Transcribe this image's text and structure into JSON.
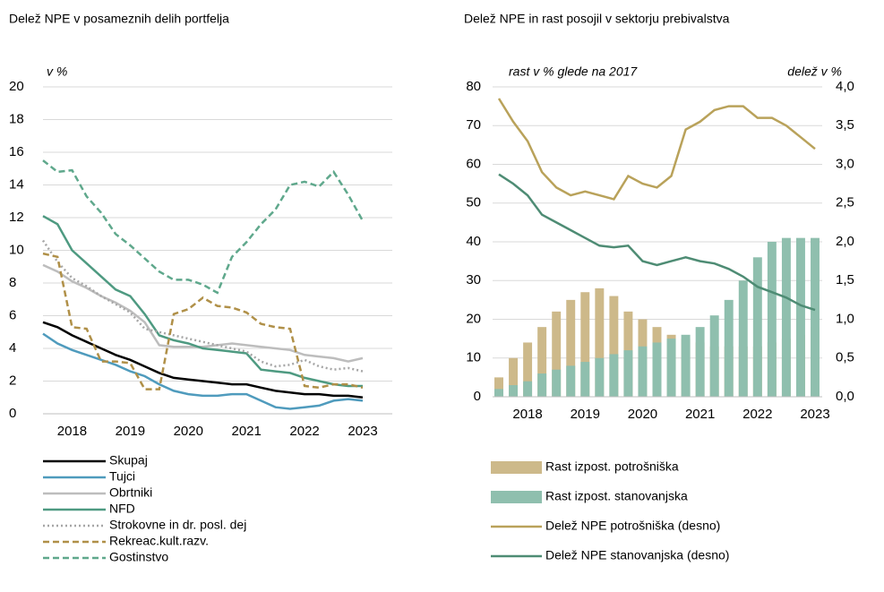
{
  "chart_data": [
    {
      "type": "line",
      "title": "Delež NPE v posameznih delih portfelja",
      "y_label": "v %",
      "categories": [
        null,
        null,
        "2018",
        null,
        null,
        null,
        "2019",
        null,
        null,
        null,
        "2020",
        null,
        null,
        null,
        "2021",
        null,
        null,
        null,
        "2022",
        null,
        null,
        null,
        "2023"
      ],
      "ylim": [
        0,
        20
      ],
      "yticks": [
        0,
        2,
        4,
        6,
        8,
        10,
        12,
        14,
        16,
        18,
        20
      ],
      "grid": true,
      "series": [
        {
          "name": "Skupaj",
          "color": "#000000",
          "dash": "solid",
          "values": [
            5.6,
            5.3,
            4.8,
            4.4,
            4.0,
            3.6,
            3.3,
            2.9,
            2.5,
            2.2,
            2.1,
            2.0,
            1.9,
            1.8,
            1.8,
            1.6,
            1.4,
            1.3,
            1.2,
            1.2,
            1.1,
            1.1,
            1.0
          ]
        },
        {
          "name": "Tujci",
          "color": "#4f9bbd",
          "dash": "solid",
          "values": [
            4.9,
            4.3,
            3.9,
            3.6,
            3.3,
            3.0,
            2.6,
            2.3,
            1.8,
            1.4,
            1.2,
            1.1,
            1.1,
            1.2,
            1.2,
            0.8,
            0.4,
            0.3,
            0.4,
            0.5,
            0.8,
            0.9,
            0.8
          ]
        },
        {
          "name": "Obrtniki",
          "color": "#bdbdbd",
          "dash": "solid",
          "values": [
            9.1,
            8.7,
            8.1,
            7.7,
            7.2,
            6.8,
            6.3,
            5.6,
            4.2,
            4.1,
            4.1,
            4.1,
            4.2,
            4.3,
            4.2,
            4.1,
            4.0,
            3.9,
            3.6,
            3.5,
            3.4,
            3.2,
            3.4
          ]
        },
        {
          "name": "NFD",
          "color": "#4e9a81",
          "dash": "solid",
          "values": [
            12.1,
            11.6,
            10.0,
            9.2,
            8.4,
            7.6,
            7.2,
            6.1,
            4.8,
            4.5,
            4.3,
            4.0,
            3.9,
            3.8,
            3.7,
            2.7,
            2.6,
            2.5,
            2.2,
            2.0,
            1.8,
            1.7,
            1.7
          ]
        },
        {
          "name": "Strokovne in dr. posl. dej",
          "color": "#a6a6a6",
          "dash": "dotted",
          "values": [
            10.6,
            9.3,
            8.3,
            7.8,
            7.2,
            6.7,
            6.2,
            5.2,
            5.0,
            4.8,
            4.6,
            4.4,
            4.2,
            4.0,
            3.8,
            3.2,
            2.9,
            3.0,
            3.3,
            2.9,
            2.7,
            2.8,
            2.6
          ]
        },
        {
          "name": "Rekreac.kult.razv.",
          "color": "#b09048",
          "dash": "dashed",
          "values": [
            9.8,
            9.6,
            5.3,
            5.2,
            3.2,
            3.2,
            3.1,
            1.5,
            1.5,
            6.1,
            6.4,
            7.1,
            6.6,
            6.5,
            6.2,
            5.5,
            5.3,
            5.2,
            1.7,
            1.6,
            1.8,
            1.8,
            1.6
          ]
        },
        {
          "name": "Gostinstvo",
          "color": "#5fa88c",
          "dash": "dashed",
          "values": [
            15.5,
            14.8,
            14.9,
            13.3,
            12.3,
            11.0,
            10.3,
            9.5,
            8.7,
            8.2,
            8.2,
            7.9,
            7.4,
            9.6,
            10.5,
            11.6,
            12.5,
            14.0,
            14.2,
            13.9,
            14.8,
            13.4,
            11.8
          ]
        }
      ]
    },
    {
      "type": "bar",
      "title": "Delež NPE in rast posojil v sektorju prebivalstva",
      "y_label": "rast v % glede na 2017",
      "y2_label": "delež v %",
      "categories": [
        null,
        null,
        "2018",
        null,
        null,
        null,
        "2019",
        null,
        null,
        null,
        "2020",
        null,
        null,
        null,
        "2021",
        null,
        null,
        null,
        "2022",
        null,
        null,
        null,
        "2023"
      ],
      "ylim": [
        0,
        80
      ],
      "yticks": [
        0,
        10,
        20,
        30,
        40,
        50,
        60,
        70,
        80
      ],
      "grid": true,
      "y2lim": [
        0,
        4
      ],
      "y2ticks": [
        {
          "value": 0,
          "label": "0,0"
        },
        {
          "value": 0.5,
          "label": "0,5"
        },
        {
          "value": 1,
          "label": "1,0"
        },
        {
          "value": 1.5,
          "label": "1,5"
        },
        {
          "value": 2,
          "label": "2,0"
        },
        {
          "value": 2.5,
          "label": "2,5"
        },
        {
          "value": 3,
          "label": "3,0"
        },
        {
          "value": 3.5,
          "label": "3,5"
        },
        {
          "value": 4,
          "label": "4,0"
        }
      ],
      "series": [
        {
          "name": "Rast izpost. potrošniška",
          "type": "bar",
          "color": "#cdb98a",
          "values": [
            5,
            10,
            14,
            18,
            22,
            25,
            27,
            28,
            26,
            22,
            20,
            18,
            16,
            15,
            14,
            13,
            13,
            13,
            13,
            14,
            15,
            16,
            18
          ]
        },
        {
          "name": "Rast izpost. stanovanjska",
          "type": "bar",
          "color": "#8fbfae",
          "values": [
            2,
            3,
            4,
            6,
            7,
            8,
            9,
            10,
            11,
            12,
            13,
            14,
            15,
            16,
            18,
            21,
            25,
            30,
            36,
            40,
            41,
            41,
            41
          ]
        },
        {
          "name": "Delež NPE potrošniška (desno)",
          "type": "line",
          "axis": "y2",
          "color": "#b9a25a",
          "values": [
            3.85,
            3.55,
            3.3,
            2.9,
            2.7,
            2.6,
            2.65,
            2.6,
            2.55,
            2.85,
            2.75,
            2.7,
            2.85,
            3.45,
            3.55,
            3.7,
            3.75,
            3.75,
            3.6,
            3.6,
            3.5,
            3.35,
            3.2
          ]
        },
        {
          "name": "Delež NPE stanovanjska (desno)",
          "type": "line",
          "axis": "y2",
          "color": "#4e8c74",
          "values": [
            2.87,
            2.75,
            2.6,
            2.35,
            2.25,
            2.15,
            2.05,
            1.95,
            1.93,
            1.95,
            1.75,
            1.7,
            1.75,
            1.8,
            1.75,
            1.72,
            1.65,
            1.55,
            1.42,
            1.35,
            1.28,
            1.18,
            1.12
          ]
        }
      ]
    }
  ]
}
